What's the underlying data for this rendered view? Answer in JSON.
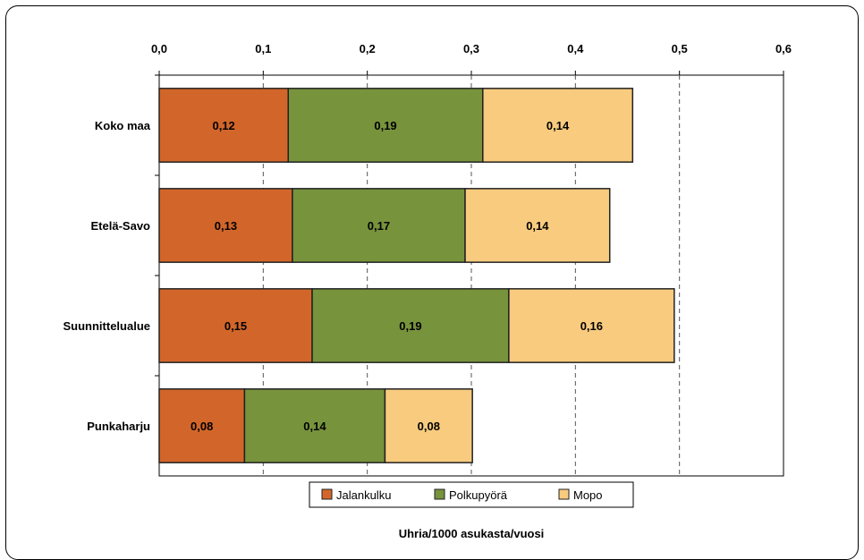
{
  "chart_data": {
    "type": "bar",
    "orientation": "horizontal",
    "stacked": true,
    "categories": [
      "Koko maa",
      "Etelä-Savo",
      "Suunnittelualue",
      "Punkaharju"
    ],
    "series": [
      {
        "name": "Jalankulku",
        "values": [
          0.124,
          0.128,
          0.147,
          0.082
        ],
        "labels": [
          "0,12",
          "0,13",
          "0,15",
          "0,08"
        ],
        "color": "#D2662A"
      },
      {
        "name": "Polkupyörä",
        "values": [
          0.187,
          0.166,
          0.189,
          0.135
        ],
        "labels": [
          "0,19",
          "0,17",
          "0,19",
          "0,14"
        ],
        "color": "#77933C"
      },
      {
        "name": "Mopo",
        "values": [
          0.144,
          0.139,
          0.159,
          0.084
        ],
        "labels": [
          "0,14",
          "0,14",
          "0,16",
          "0,08"
        ],
        "color": "#F8CB7E"
      }
    ],
    "xlim": [
      0,
      0.6
    ],
    "ticks": [
      0,
      0.1,
      0.2,
      0.3,
      0.4,
      0.5,
      0.6
    ],
    "tick_labels": [
      "0,0",
      "0,1",
      "0,2",
      "0,3",
      "0,4",
      "0,5",
      "0,6"
    ],
    "xlabel": "Uhria/1000 asukasta/vuosi",
    "axis_position": "top",
    "grid": "vertical dashed",
    "legend_position": "bottom"
  }
}
